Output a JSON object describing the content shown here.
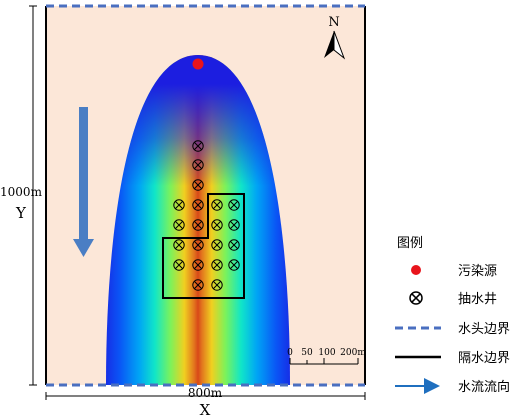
{
  "axes": {
    "x_label": "X",
    "x_length": "800m",
    "y_label": "Y",
    "y_length": "1000m"
  },
  "compass": {
    "label": "N"
  },
  "scale_bar": {
    "ticks": [
      "0",
      "50",
      "100",
      "200m"
    ]
  },
  "legend": {
    "title": "图例",
    "items": [
      {
        "key": "source",
        "label": "污染源",
        "color": "#e8141c"
      },
      {
        "key": "well",
        "label": "抽水井"
      },
      {
        "key": "head_boundary",
        "label": "水头边界",
        "color": "#4a6fc0"
      },
      {
        "key": "barrier",
        "label": "隔水边界",
        "color": "#000000"
      },
      {
        "key": "flow",
        "label": "水流流向",
        "color": "#1f6fbf"
      }
    ]
  },
  "colors": {
    "background": "#fce7d8",
    "plume_outer": "#1a1fd6",
    "plume_core": "#d84a1a",
    "flow_arrow": "#4a7ec4"
  },
  "wells": {
    "count": 26
  }
}
